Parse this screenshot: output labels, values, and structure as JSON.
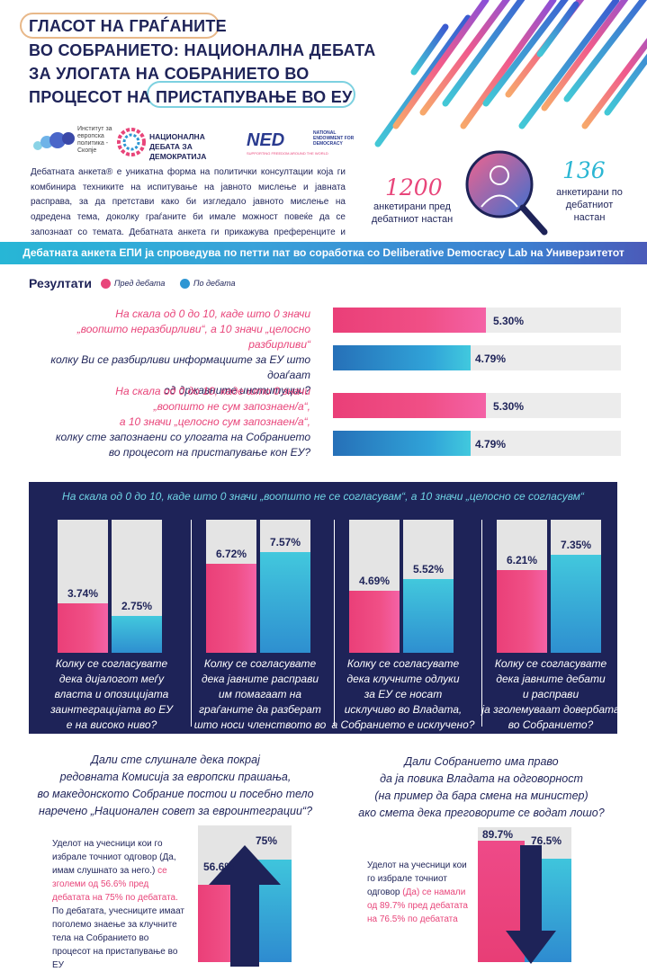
{
  "title": {
    "line1": "ГЛАСОТ НА ГРАЃАНИТЕ",
    "line2": "ВО СОБРАНИЕТО: НАЦИОНАЛНА ДЕБАТА",
    "line3": "ЗА УЛОГАТА НА СОБРАНИЕТО ВО",
    "line4a": "ПРОЦЕСОТ НА",
    "line4b": "ПРИСТАПУВАЊЕ ВО ЕУ"
  },
  "logos": {
    "iep": "Институт за европска политика - Скопје",
    "ndd": "НАЦИОНАЛНА ДЕБАТА ЗА ДЕМОКРАТИЈА",
    "ned": "NED",
    "ned_full": "NATIONAL ENDOWMENT FOR DEMOCRACY",
    "ned_tag": "SUPPORTING FREEDOM AROUND THE WORLD"
  },
  "intro": "Дебатната анкета® е уникатна форма на политички консултации која ги комбинира техниките на испитување на јавното мислење и јавната расправа, за да претстави како би изгледало јавното мислење на одредена тема, доколку граѓаните би имале можност повеќе да се запознаат со темата. Дебатната анкета ги прикажува преференците и мислењата на граѓаните, пред и по детално запознавање со темата.",
  "stats": {
    "before_num": "1200",
    "before_label": "анкетирани пред дебатниот настан",
    "after_num": "136",
    "after_label": "анкетирани по дебатниот настан"
  },
  "banner": "Дебатната анкета ЕПИ ја спроведува по петти пат во соработка со Deliberative Democracy Lab на Универзитетот Стенфорд од САД.",
  "results": {
    "heading": "Резултати",
    "legend_before": "Пред дебата",
    "legend_after": "По дебата",
    "colors": {
      "before": "#ea3f78",
      "after": "#2e96d3",
      "navy": "#1e2358"
    }
  },
  "hq1": {
    "line1": "На скала од 0 до 10, каде што 0 значи",
    "line2": "„воопшто неразбирливи“, а 10 значи „целосно разбирливи“",
    "line3": "колку Ви се разбирливи информациите за ЕУ што доаѓаат",
    "line4": "од државните институции?",
    "before_pct": 53.0,
    "after_pct": 47.9,
    "before_label": "5.30%",
    "after_label": "4.79%"
  },
  "hq2": {
    "line1": "На скала од 0 до 10, каде што 0 значи",
    "line2": "„воопшто не сум запознаен/а“,",
    "line3": "а 10 значи „целосно сум запознаен/а“,",
    "line4": "колку сте запознаени со улогата на Собранието",
    "line5": "во процесот на пристапување кон ЕУ?",
    "before_pct": 53.0,
    "after_pct": 47.9,
    "before_label": "5.30%",
    "after_label": "4.79%"
  },
  "navy_title": "На скала од 0 до 10, каде што 0 значи „воопшто не се согласувам“, а 10 значи „целосно се согласувм“",
  "vgroups": [
    {
      "before": 37.4,
      "after": 27.5,
      "before_label": "3.74%",
      "after_label": "2.75%",
      "caption": [
        "Колку се согласувате",
        "дека дијалогот меѓу",
        "власта и опозицијата",
        "заинтеграцијата во ЕУ",
        "е на високо ниво?"
      ]
    },
    {
      "before": 67.2,
      "after": 75.7,
      "before_label": "6.72%",
      "after_label": "7.57%",
      "caption": [
        "Колку се согласувате",
        "дека јавните расправи",
        "им помагаат на",
        "граѓаните да разберат",
        "што носи членството во ЕУ?"
      ]
    },
    {
      "before": 46.9,
      "after": 55.2,
      "before_label": "4.69%",
      "after_label": "5.52%",
      "caption": [
        "Колку се согласувате",
        "дека клучните одлуки",
        "за ЕУ се носат",
        "исклучиво во Владата,",
        "а Собранието е исклучено?"
      ]
    },
    {
      "before": 62.1,
      "after": 73.5,
      "before_label": "6.21%",
      "after_label": "7.35%",
      "caption": [
        "Колку се согласувате",
        "дека јавните дебати",
        "и расправи",
        "ја зголемуваат довербата",
        "во Собранието?"
      ]
    }
  ],
  "bq1": {
    "lines": [
      "Дали сте слушнале дека покрај",
      "редовната Комисија за европски прашања,",
      "во македонското Собрание постои и посебно тело",
      "наречено „Национален совет за евроинтеграции“?"
    ],
    "note_a": "Уделот на учесници кои го избрале точниот одговор (Да, имам слушнато за него.)",
    "note_b": "се зголеми од 56.6% пред дебатата на 75% по дебатата.",
    "note_c": "По дебатата, учесниците имаат поголемо знаење за клучните тела на Собранието во процесот на пристапување во ЕУ",
    "before": 56.6,
    "after": 75.0,
    "before_label": "56.6%",
    "after_label": "75%"
  },
  "bq2": {
    "lines": [
      "Дали Собранието има право",
      "да ја повика Владата на одговорност",
      "(на пример да бара смена на министер)",
      "ако смета дека преговорите се водат лошо?"
    ],
    "note_a": "Уделот на учесници кои го избрале точниот одговор",
    "note_b": "(Да) се намали од 89.7% пред дебатата на 76.5% по дебатата",
    "before": 89.7,
    "after": 76.5,
    "before_label": "89.7%",
    "after_label": "76.5%"
  }
}
